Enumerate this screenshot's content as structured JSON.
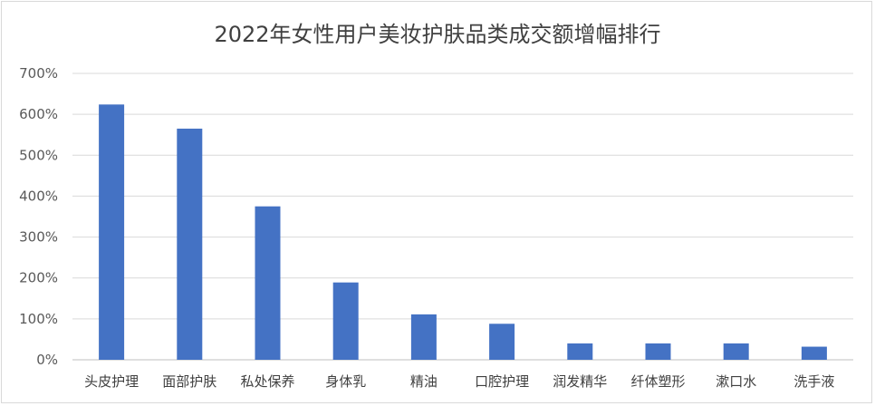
{
  "chart_data": {
    "type": "bar",
    "title": "2022年女性用户美妆护肤品类成交额增幅排行",
    "categories": [
      "头皮护理",
      "面部护肤",
      "私处保养",
      "身体乳",
      "精油",
      "口腔护理",
      "润发精华",
      "纤体塑形",
      "漱口水",
      "洗手液"
    ],
    "values": [
      624,
      565,
      375,
      189,
      111,
      88,
      40,
      40,
      40,
      32
    ],
    "yticks": [
      "0%",
      "100%",
      "200%",
      "300%",
      "400%",
      "500%",
      "600%",
      "700%"
    ],
    "ylim": [
      0,
      700
    ],
    "unit": "%",
    "grid": true,
    "legend": "none",
    "colors": {
      "bar": "#4472C4",
      "grid": "#d9d9d9",
      "axis": "#bfbfbf"
    }
  }
}
